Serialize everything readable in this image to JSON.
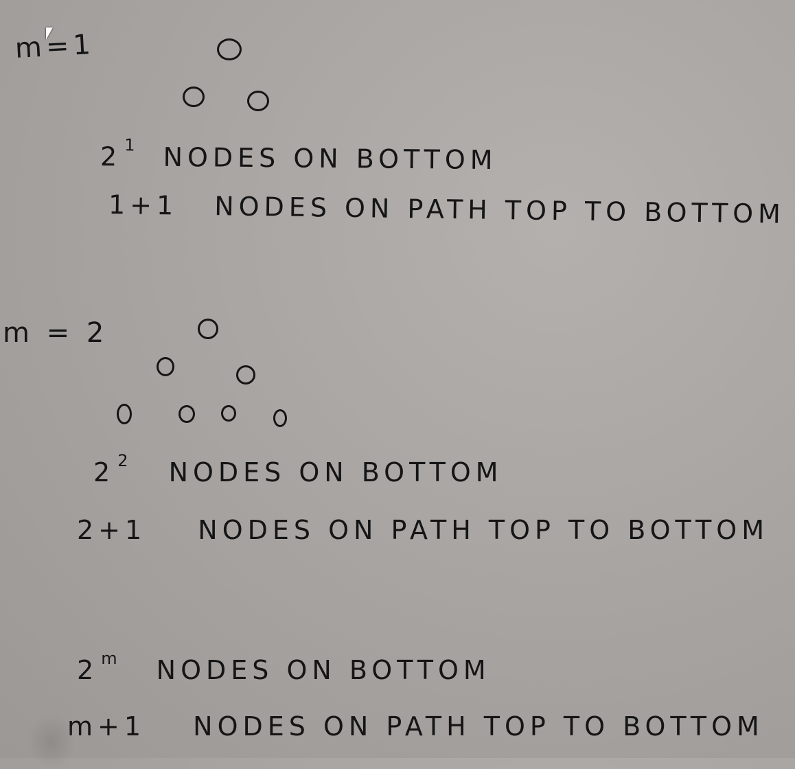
{
  "case1": {
    "label": "m=1",
    "exp_base": "2",
    "exp": "1",
    "bottom_text": "NODES ON BOTTOM",
    "path_prefix": "1+1",
    "path_text": "NODES ON PATH TOP TO BOTTOM"
  },
  "case2": {
    "label": "m = 2",
    "exp_base": "2",
    "exp": "2",
    "bottom_text": "NODES ON BOTTOM",
    "path_prefix": "2+1",
    "path_text": "NODES ON PATH TOP TO BOTTOM"
  },
  "general": {
    "exp_base": "2",
    "exp": "m",
    "bottom_text": "NODES ON BOTTOM",
    "path_prefix": "m+1",
    "path_text": "NODES ON PATH TOP TO BOTTOM"
  },
  "colors": {
    "background": "#a9a5a3",
    "ink": "#151515"
  }
}
